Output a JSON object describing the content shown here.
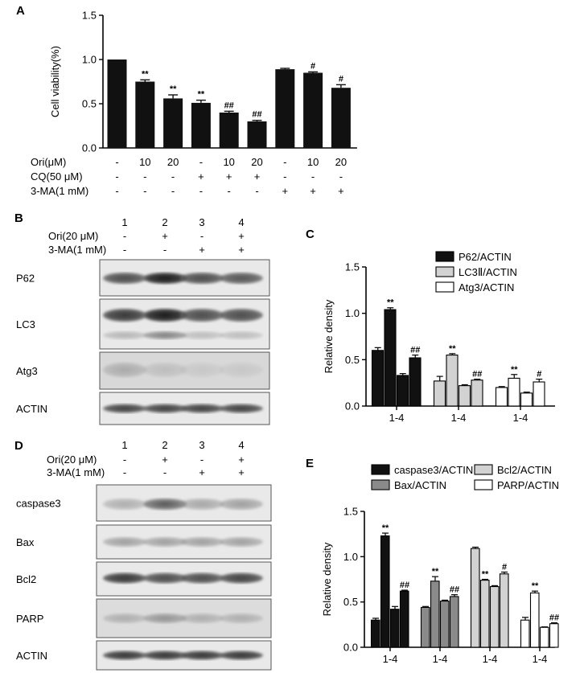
{
  "panels": {
    "A": "A",
    "B": "B",
    "C": "C",
    "D": "D",
    "E": "E"
  },
  "chartA": {
    "type": "bar",
    "ylabel": "Cell viability(%)",
    "ylim": [
      0,
      1.5
    ],
    "yticks": [
      "0.0",
      "0.5",
      "1.0",
      "1.5"
    ],
    "values": [
      1.0,
      0.75,
      0.56,
      0.51,
      0.4,
      0.3,
      0.89,
      0.85,
      0.68
    ],
    "errors": [
      0.0,
      0.02,
      0.04,
      0.03,
      0.015,
      0.012,
      0.01,
      0.01,
      0.035
    ],
    "sig": [
      "",
      "**",
      "**",
      "**",
      "##",
      "##",
      "",
      "#",
      "#"
    ],
    "condition_rows": [
      {
        "label": "Ori(μM)",
        "cells": [
          "-",
          "10",
          "20",
          "-",
          "10",
          "20",
          "-",
          "10",
          "20"
        ]
      },
      {
        "label": "CQ(50 μM)",
        "cells": [
          "-",
          "-",
          "-",
          "+",
          "+",
          "+",
          "-",
          "-",
          "-"
        ]
      },
      {
        "label": "3-MA(1 mM)",
        "cells": [
          "-",
          "-",
          "-",
          "-",
          "-",
          "-",
          "+",
          "+",
          "+"
        ]
      }
    ]
  },
  "blotB": {
    "lanes": [
      "1",
      "2",
      "3",
      "4"
    ],
    "conditions": [
      {
        "label": "Ori(20 μM)",
        "cells": [
          "-",
          "+",
          "-",
          "+"
        ]
      },
      {
        "label": "3-MA(1 mM)",
        "cells": [
          "-",
          "-",
          "+",
          "+"
        ]
      }
    ],
    "bands": [
      "P62",
      "LC3",
      "Atg3",
      "ACTIN"
    ]
  },
  "chartC": {
    "type": "bar",
    "ylabel": "Relative density",
    "ylim": [
      0,
      1.5
    ],
    "yticks": [
      "0.0",
      "0.5",
      "1.0",
      "1.5"
    ],
    "groups": [
      "1-4",
      "1-4",
      "1-4"
    ],
    "series": [
      {
        "name": "P62/ACTIN",
        "color": "#111111",
        "values": [
          0.6,
          1.04,
          0.33,
          0.52
        ],
        "errors": [
          0.03,
          0.02,
          0.02,
          0.03
        ],
        "sig": [
          "",
          "**",
          "",
          "##"
        ]
      },
      {
        "name": "LC3Ⅱ/ACTIN",
        "color": "#d2d2d2",
        "values": [
          0.27,
          0.55,
          0.22,
          0.28
        ],
        "errors": [
          0.05,
          0.015,
          0.01,
          0.01
        ],
        "sig": [
          "",
          "**",
          "",
          "##"
        ]
      },
      {
        "name": "Atg3/ACTIN",
        "color": "#ffffff",
        "values": [
          0.2,
          0.3,
          0.14,
          0.26
        ],
        "errors": [
          0.01,
          0.04,
          0.01,
          0.03
        ],
        "sig": [
          "",
          "**",
          "",
          "#"
        ]
      }
    ]
  },
  "blotD": {
    "lanes": [
      "1",
      "2",
      "3",
      "4"
    ],
    "conditions": [
      {
        "label": "Ori(20 μM)",
        "cells": [
          "-",
          "+",
          "-",
          "+"
        ]
      },
      {
        "label": "3-MA(1 mM)",
        "cells": [
          "-",
          "-",
          "+",
          "+"
        ]
      }
    ],
    "bands": [
      "caspase3",
      "Bax",
      "Bcl2",
      "PARP",
      "ACTIN"
    ]
  },
  "chartE": {
    "type": "bar",
    "ylabel": "Relative density",
    "ylim": [
      0,
      1.5
    ],
    "yticks": [
      "0.0",
      "0.5",
      "1.0",
      "1.5"
    ],
    "groups": [
      "1-4",
      "1-4",
      "1-4",
      "1-4"
    ],
    "series": [
      {
        "name": "caspase3/ACTIN",
        "color": "#111111",
        "values": [
          0.3,
          1.23,
          0.42,
          0.62
        ],
        "errors": [
          0.02,
          0.03,
          0.03,
          0.01
        ],
        "sig": [
          "",
          "**",
          "",
          "##"
        ]
      },
      {
        "name": "Bax/ACTIN",
        "color": "#8a8a8a",
        "values": [
          0.44,
          0.73,
          0.51,
          0.56
        ],
        "errors": [
          0.01,
          0.05,
          0.01,
          0.02
        ],
        "sig": [
          "",
          "**",
          "",
          "##"
        ]
      },
      {
        "name": "Bcl2/ACTIN",
        "color": "#d2d2d2",
        "values": [
          1.09,
          0.74,
          0.67,
          0.81
        ],
        "errors": [
          0.015,
          0.01,
          0.01,
          0.02
        ],
        "sig": [
          "",
          "**",
          "",
          "#"
        ]
      },
      {
        "name": "PARP/ACTIN",
        "color": "#ffffff",
        "values": [
          0.3,
          0.6,
          0.22,
          0.26
        ],
        "errors": [
          0.03,
          0.02,
          0.005,
          0.01
        ],
        "sig": [
          "",
          "**",
          "",
          "##"
        ]
      }
    ]
  }
}
